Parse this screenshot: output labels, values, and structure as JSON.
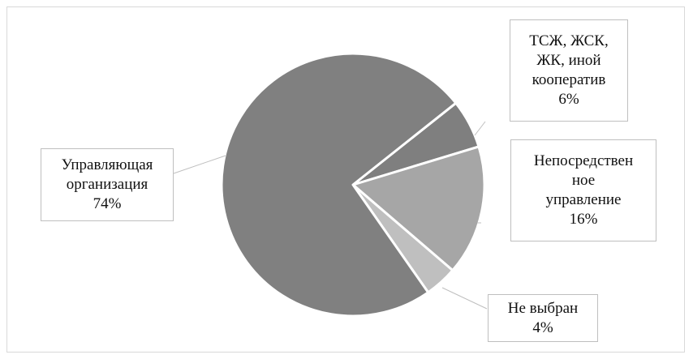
{
  "chart_data": {
    "type": "pie",
    "title": "",
    "slices": [
      {
        "lines": [
          "ТСЖ, ЖСК,",
          "ЖК, иной",
          "кооператив"
        ],
        "percent_label": "6%",
        "value": 6,
        "color": "#7f7f7f"
      },
      {
        "lines": [
          "Непосредствен",
          "ное",
          "управление"
        ],
        "percent_label": "16%",
        "value": 16,
        "color": "#a6a6a6"
      },
      {
        "lines": [
          "Не выбран"
        ],
        "percent_label": "4%",
        "value": 4,
        "color": "#bfbfbf"
      },
      {
        "lines": [
          "Управляющая",
          "организация"
        ],
        "percent_label": "74%",
        "value": 74,
        "color": "#808080"
      }
    ],
    "legend": "none",
    "slice_border_color": "#ffffff"
  }
}
